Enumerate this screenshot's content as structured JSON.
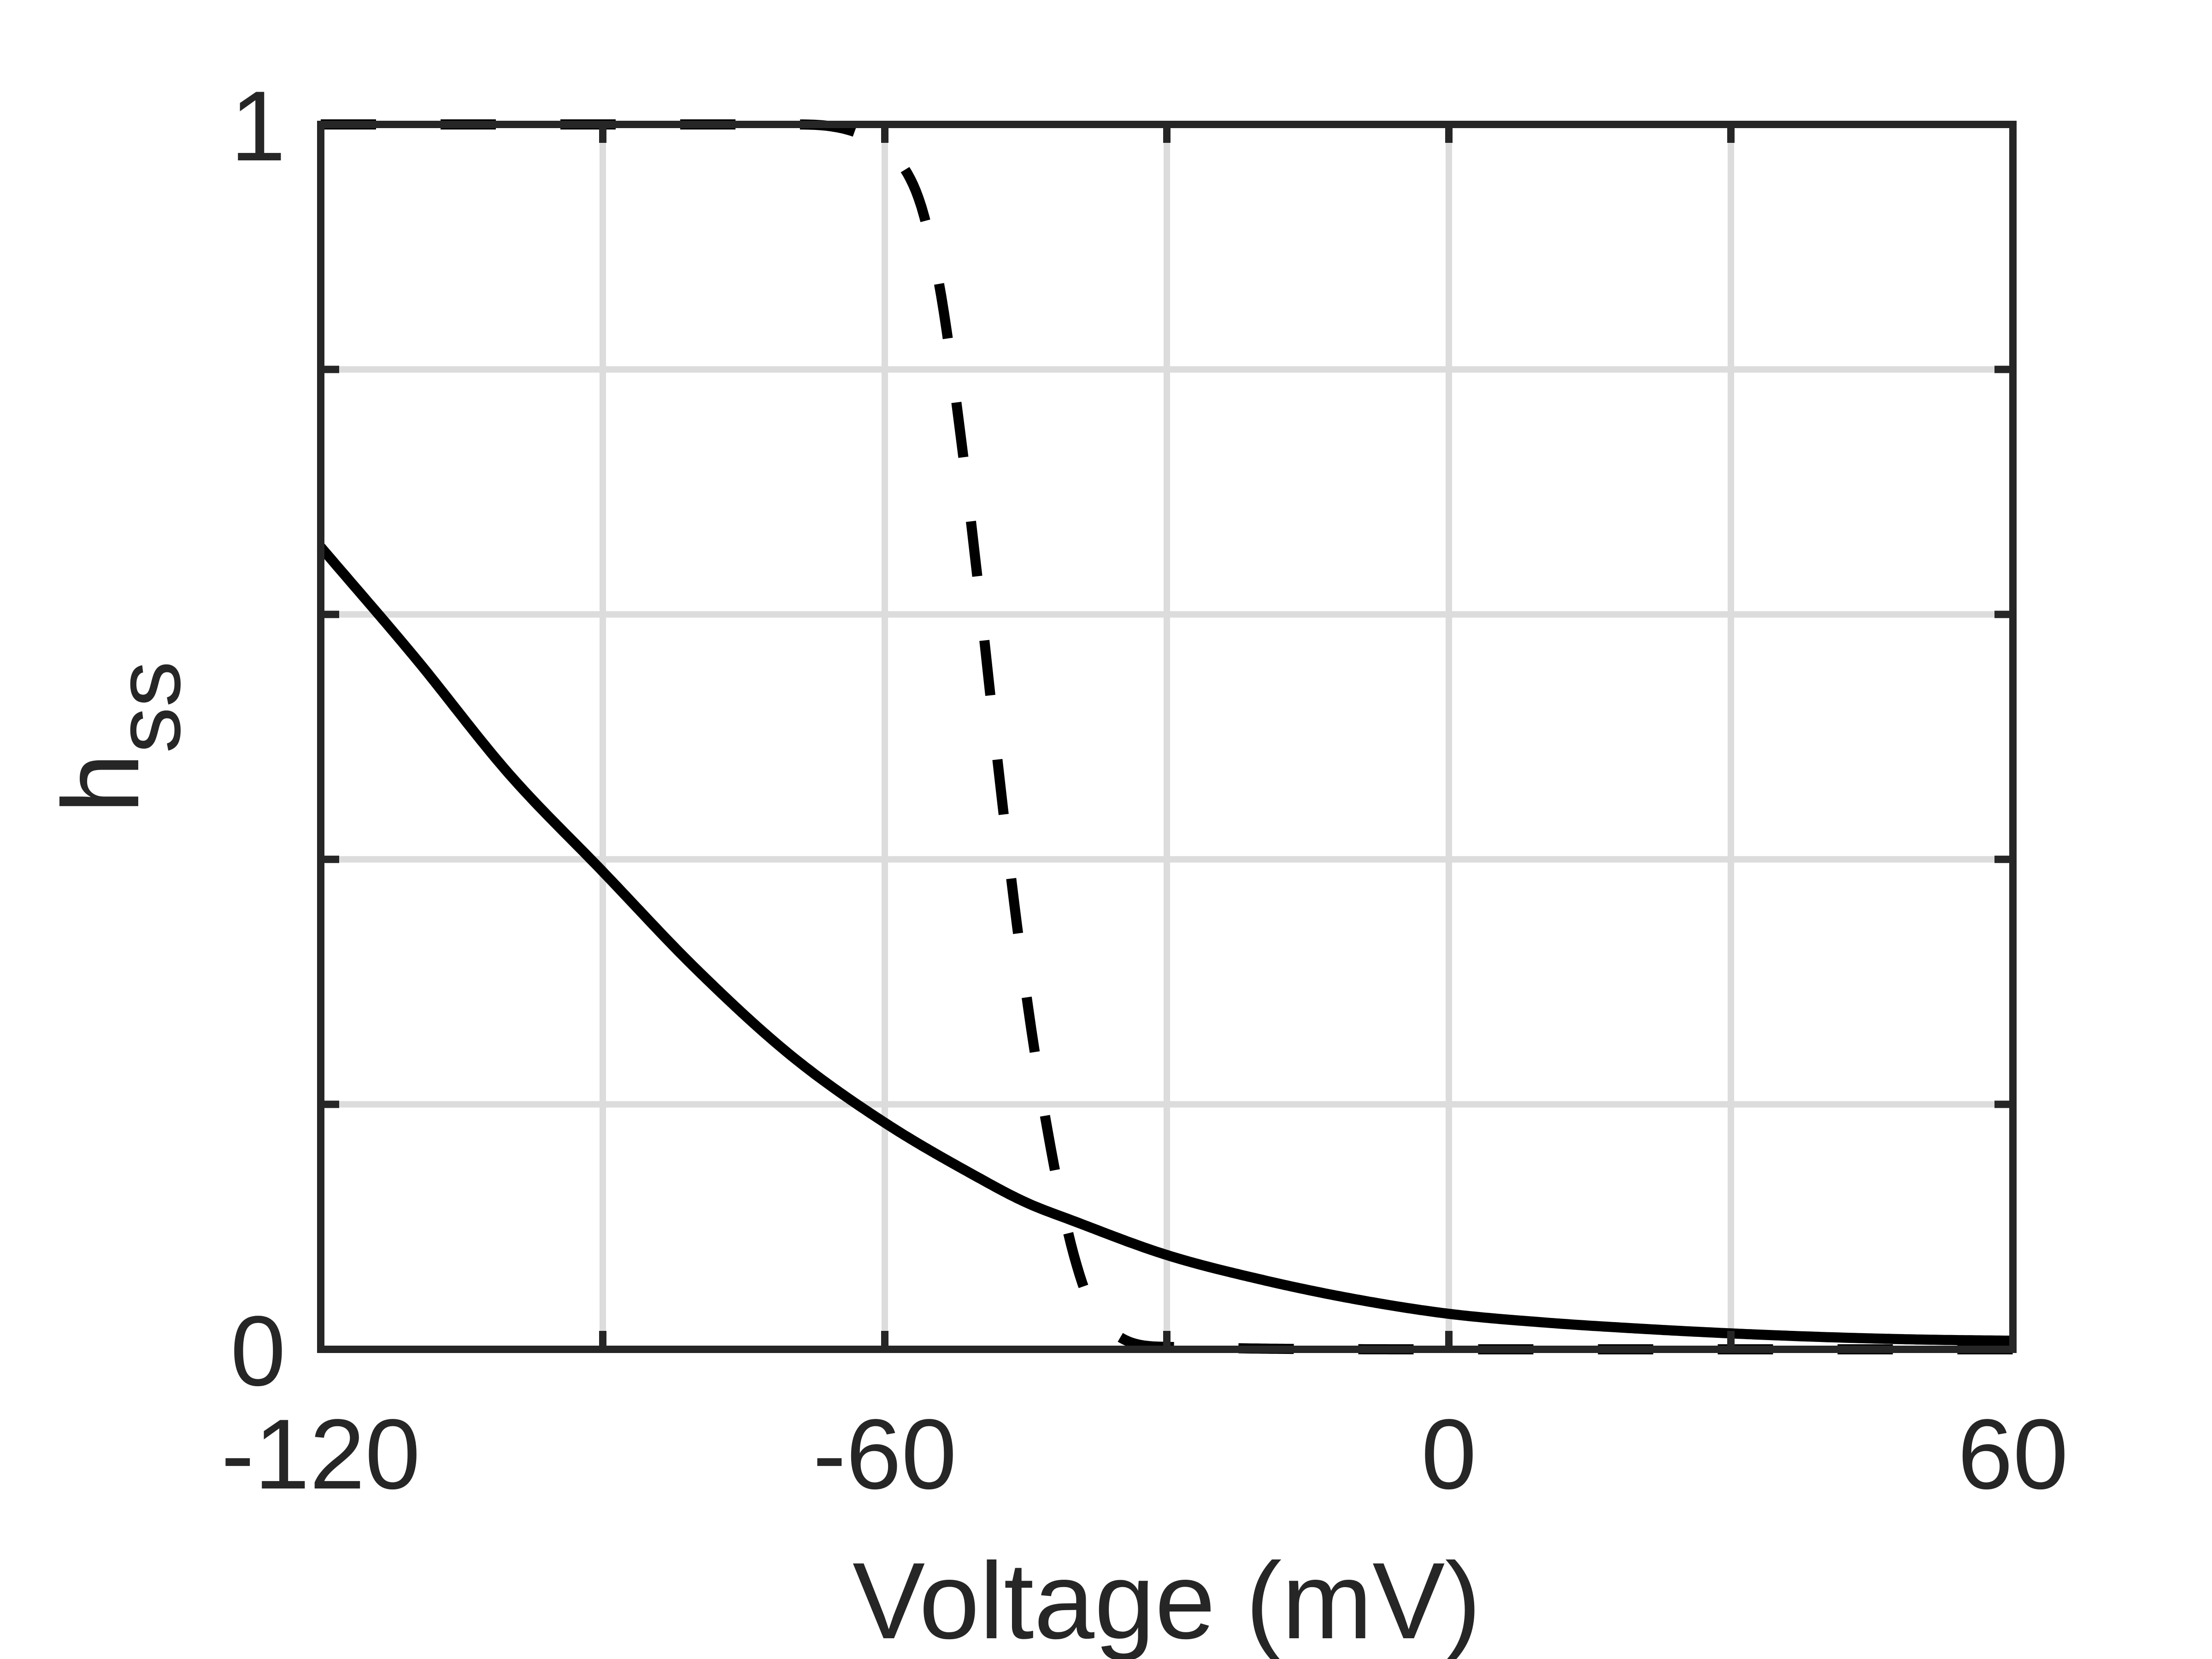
{
  "chart_data": {
    "type": "line",
    "title": "",
    "xlabel": "Voltage (mV)",
    "ylabel_main": "h",
    "ylabel_sub": "ss",
    "xlim": [
      -120,
      60
    ],
    "ylim": [
      0,
      1
    ],
    "xticks": [
      -120,
      -90,
      -60,
      -30,
      0,
      30,
      60
    ],
    "xtick_labels": [
      "-120",
      "",
      "-60",
      "",
      "0",
      "",
      "60"
    ],
    "yticks": [
      0,
      0.2,
      0.4,
      0.6,
      0.8,
      1
    ],
    "ytick_labels": [
      "0",
      "",
      "",
      "",
      "",
      "1"
    ],
    "grid": true,
    "series": [
      {
        "style": "solid",
        "color": "#000000",
        "x": [
          -120,
          -110,
          -100,
          -90,
          -80,
          -70,
          -60,
          -50,
          -45,
          -40,
          -30,
          -20,
          -10,
          0,
          10,
          20,
          30,
          40,
          50,
          60
        ],
        "y": [
          0.655,
          0.565,
          0.47,
          0.39,
          0.31,
          0.24,
          0.185,
          0.14,
          0.12,
          0.105,
          0.077,
          0.057,
          0.041,
          0.029,
          0.022,
          0.017,
          0.013,
          0.01,
          0.008,
          0.007
        ]
      },
      {
        "style": "dashed",
        "color": "#000000",
        "x": [
          -120,
          -70,
          -62,
          -58,
          -56,
          -54,
          -52,
          -50,
          -48,
          -46,
          -44,
          -42,
          -40,
          -38,
          -35,
          -30,
          0,
          60
        ],
        "y": [
          1.0,
          1.0,
          0.99,
          0.965,
          0.93,
          0.86,
          0.75,
          0.62,
          0.48,
          0.35,
          0.24,
          0.15,
          0.08,
          0.035,
          0.01,
          0.002,
          0.0,
          0.0
        ]
      }
    ]
  }
}
